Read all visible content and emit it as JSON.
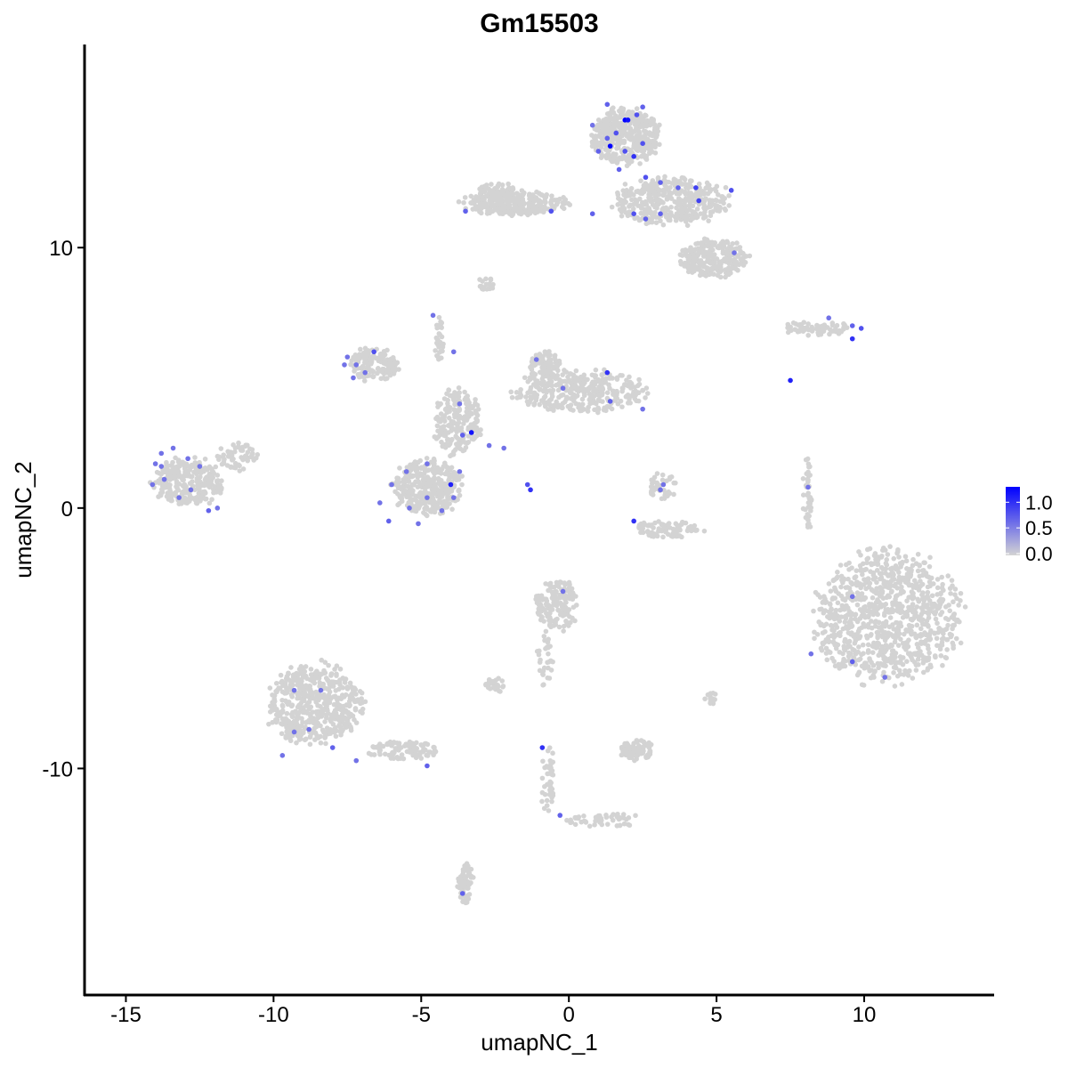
{
  "chart_data": {
    "type": "scatter",
    "title": "Gm15503",
    "xlabel": "umapNC_1",
    "ylabel": "umapNC_2",
    "xlim": [
      -16.4,
      14.4
    ],
    "ylim": [
      -18.7,
      17.8
    ],
    "x_ticks": [
      -15,
      -10,
      -5,
      0,
      5,
      10
    ],
    "y_ticks": [
      -10,
      0,
      10
    ],
    "grid": false,
    "colors": {
      "low": "#d3d3d3",
      "high": "#0000ff"
    },
    "legend": {
      "position": "right",
      "ticks": [
        1.0,
        0.5,
        0.0
      ],
      "tick_labels": [
        "1.0",
        "0.5",
        "0.0"
      ],
      "range": [
        0,
        1.3
      ]
    },
    "unexpressed_cell_clusters": [
      [
        1.9,
        14.3,
        1.3,
        1.2,
        400
      ],
      [
        3.5,
        11.8,
        2.2,
        1.0,
        400
      ],
      [
        4.9,
        9.6,
        1.3,
        0.8,
        250
      ],
      [
        -1.8,
        11.7,
        2.0,
        0.5,
        250
      ],
      [
        -2.4,
        12.0,
        0.8,
        0.6,
        100
      ],
      [
        -2.8,
        8.6,
        0.3,
        0.3,
        20
      ],
      [
        8.4,
        6.9,
        1.3,
        0.3,
        60
      ],
      [
        -12.9,
        1.0,
        1.3,
        1.0,
        300
      ],
      [
        -11.2,
        2.0,
        0.8,
        0.6,
        60
      ],
      [
        -6.6,
        5.5,
        0.9,
        0.7,
        150
      ],
      [
        -4.8,
        0.8,
        1.3,
        1.2,
        350
      ],
      [
        -3.8,
        3.3,
        0.9,
        1.4,
        200
      ],
      [
        0.4,
        4.5,
        2.5,
        0.9,
        350
      ],
      [
        -0.8,
        5.5,
        0.6,
        0.6,
        80
      ],
      [
        -4.4,
        6.5,
        0.2,
        1.0,
        30
      ],
      [
        3.2,
        0.8,
        0.5,
        0.6,
        40
      ],
      [
        3.4,
        -0.8,
        1.3,
        0.35,
        80
      ],
      [
        8.1,
        0.5,
        0.2,
        1.6,
        40
      ],
      [
        10.8,
        -4.2,
        2.7,
        2.8,
        900
      ],
      [
        -0.4,
        -3.7,
        0.8,
        1.1,
        150
      ],
      [
        -0.8,
        -5.8,
        0.3,
        1.2,
        30
      ],
      [
        -8.6,
        -7.5,
        1.8,
        1.7,
        500
      ],
      [
        -5.6,
        -9.3,
        1.3,
        0.4,
        100
      ],
      [
        -2.5,
        -6.8,
        0.4,
        0.3,
        30
      ],
      [
        2.3,
        -9.3,
        0.7,
        0.45,
        80
      ],
      [
        -0.7,
        -10.4,
        0.3,
        1.4,
        40
      ],
      [
        1.2,
        -12.0,
        1.5,
        0.3,
        50
      ],
      [
        -3.5,
        -14.4,
        0.3,
        0.9,
        60
      ],
      [
        4.8,
        -7.3,
        0.3,
        0.25,
        15
      ]
    ],
    "expressing_cells": [
      [
        1.3,
        15.5,
        0.7
      ],
      [
        1.9,
        14.9,
        1.3
      ],
      [
        2.0,
        14.9,
        1.2
      ],
      [
        2.3,
        15.1,
        0.8
      ],
      [
        1.4,
        13.9,
        1.3
      ],
      [
        1.6,
        14.4,
        0.8
      ],
      [
        2.2,
        13.5,
        1.0
      ],
      [
        2.5,
        14.0,
        0.8
      ],
      [
        0.8,
        14.7,
        0.6
      ],
      [
        2.6,
        12.7,
        0.8
      ],
      [
        3.1,
        12.5,
        0.7
      ],
      [
        3.7,
        12.3,
        0.7
      ],
      [
        4.3,
        12.3,
        0.9
      ],
      [
        5.5,
        12.2,
        0.8
      ],
      [
        2.6,
        11.1,
        0.7
      ],
      [
        3.1,
        11.3,
        0.7
      ],
      [
        4.4,
        11.8,
        0.9
      ],
      [
        5.6,
        9.8,
        0.6
      ],
      [
        1.3,
        14.2,
        0.7
      ],
      [
        1.9,
        13.7,
        0.8
      ],
      [
        1.7,
        13.0,
        0.7
      ],
      [
        2.5,
        15.4,
        0.7
      ],
      [
        1.0,
        13.7,
        0.7
      ],
      [
        -3.5,
        11.4,
        0.7
      ],
      [
        -0.6,
        11.4,
        0.8
      ],
      [
        0.8,
        11.3,
        0.7
      ],
      [
        2.2,
        11.3,
        0.8
      ],
      [
        -7.5,
        5.8,
        0.6
      ],
      [
        -7.2,
        5.5,
        0.6
      ],
      [
        -7.3,
        5.0,
        0.6
      ],
      [
        -6.9,
        5.2,
        0.6
      ],
      [
        -6.6,
        6.0,
        0.8
      ],
      [
        -7.6,
        5.5,
        0.6
      ],
      [
        -4.6,
        7.4,
        0.6
      ],
      [
        -3.9,
        6.0,
        0.6
      ],
      [
        -3.7,
        4.0,
        0.6
      ],
      [
        -3.6,
        2.8,
        0.7
      ],
      [
        -3.3,
        2.9,
        1.2
      ],
      [
        -4.0,
        0.9,
        1.1
      ],
      [
        -6.0,
        0.9,
        0.6
      ],
      [
        -6.4,
        0.2,
        0.6
      ],
      [
        -6.1,
        -0.5,
        0.7
      ],
      [
        -5.4,
        0.0,
        0.6
      ],
      [
        -4.8,
        0.4,
        0.6
      ],
      [
        -4.3,
        -0.1,
        0.6
      ],
      [
        -3.9,
        0.4,
        0.6
      ],
      [
        -3.7,
        1.4,
        0.6
      ],
      [
        -5.1,
        -0.6,
        0.6
      ],
      [
        -5.5,
        1.4,
        0.6
      ],
      [
        -4.8,
        1.7,
        0.6
      ],
      [
        -1.1,
        5.7,
        0.6
      ],
      [
        -0.2,
        4.6,
        0.6
      ],
      [
        1.3,
        5.2,
        1.0
      ],
      [
        1.4,
        4.1,
        0.7
      ],
      [
        2.5,
        3.8,
        0.6
      ],
      [
        -1.3,
        0.7,
        1.0
      ],
      [
        -1.4,
        0.9,
        0.8
      ],
      [
        -2.7,
        2.4,
        0.6
      ],
      [
        -2.2,
        2.3,
        0.6
      ],
      [
        -13.8,
        2.1,
        0.6
      ],
      [
        -13.4,
        2.3,
        0.6
      ],
      [
        -12.9,
        1.9,
        0.6
      ],
      [
        -14.0,
        1.7,
        0.6
      ],
      [
        -13.7,
        1.1,
        0.6
      ],
      [
        -14.1,
        0.9,
        0.6
      ],
      [
        -12.8,
        0.7,
        0.6
      ],
      [
        -12.2,
        -0.1,
        0.7
      ],
      [
        -11.9,
        0.0,
        0.6
      ],
      [
        -13.2,
        0.4,
        0.6
      ],
      [
        -12.5,
        1.6,
        0.6
      ],
      [
        -13.8,
        1.6,
        0.6
      ],
      [
        3.2,
        0.9,
        0.6
      ],
      [
        3.1,
        0.7,
        0.6
      ],
      [
        2.2,
        -0.5,
        1.0
      ],
      [
        7.5,
        4.9,
        1.1
      ],
      [
        8.1,
        0.8,
        0.6
      ],
      [
        8.8,
        7.3,
        0.6
      ],
      [
        9.6,
        7.0,
        0.7
      ],
      [
        9.9,
        6.9,
        0.8
      ],
      [
        9.6,
        6.5,
        1.0
      ],
      [
        9.6,
        -3.4,
        0.6
      ],
      [
        8.2,
        -5.6,
        0.6
      ],
      [
        9.6,
        -5.9,
        0.7
      ],
      [
        10.7,
        -6.5,
        0.6
      ],
      [
        -0.2,
        -3.2,
        0.6
      ],
      [
        -0.9,
        -9.2,
        1.0
      ],
      [
        -0.3,
        -11.8,
        0.7
      ],
      [
        -9.3,
        -7.0,
        0.6
      ],
      [
        -8.4,
        -7.0,
        0.6
      ],
      [
        -8.8,
        -8.5,
        0.6
      ],
      [
        -9.3,
        -8.6,
        0.6
      ],
      [
        -8.0,
        -9.2,
        0.7
      ],
      [
        -9.7,
        -9.5,
        0.6
      ],
      [
        -7.2,
        -9.7,
        0.6
      ],
      [
        -4.8,
        -9.9,
        0.7
      ],
      [
        -3.6,
        -14.8,
        0.7
      ]
    ]
  }
}
